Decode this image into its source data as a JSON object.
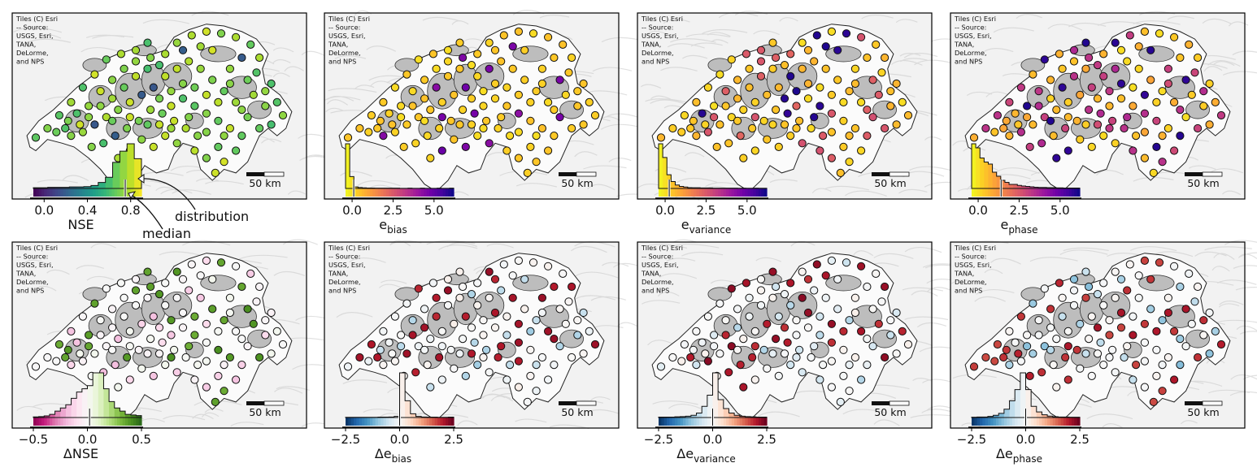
{
  "map_credit": [
    "Tiles (C) Esri",
    "-- Source:",
    "USGS, Esri,",
    "TANA,",
    "DeLorme,",
    "and NPS"
  ],
  "scalebar_label": "50 km",
  "annotations": {
    "distribution": "distribution",
    "median": "median"
  },
  "panels": [
    {
      "id": "nse",
      "colormap": "viridis",
      "label_main": "NSE",
      "label_sub": "",
      "ticks": [
        "0.0",
        "0.4",
        "0.8"
      ],
      "tick_values": [
        0.0,
        0.4,
        0.8
      ],
      "range": [
        -0.1,
        0.9
      ],
      "median": 0.75,
      "hist": [
        0.2,
        0.2,
        0.3,
        0.3,
        0.3,
        0.4,
        0.4,
        0.5,
        0.8,
        1.6,
        3.0,
        7.0,
        10.0,
        12.0,
        8.0
      ]
    },
    {
      "id": "ebias",
      "colormap": "plasma_r",
      "label_main": "e",
      "label_sub": "bias",
      "ticks": [
        "0.0",
        "2.5",
        "5.0"
      ],
      "tick_values": [
        0.0,
        2.5,
        5.0
      ],
      "range": [
        -0.4,
        6.2
      ],
      "median": 0.1,
      "hist": [
        30,
        8,
        1,
        0.6,
        0.4,
        0.3,
        0.3,
        0.2,
        0.2,
        0.2,
        0.2,
        0.2,
        0.2,
        0.1,
        0.1,
        0.2,
        0.1,
        0.1,
        0.2,
        0.1,
        0.1,
        0.1,
        0.2,
        0.1,
        0.1,
        0.2
      ]
    },
    {
      "id": "evariance",
      "colormap": "plasma_r",
      "label_main": "e",
      "label_sub": "variance",
      "ticks": [
        "0.0",
        "2.5",
        "5.0"
      ],
      "tick_values": [
        0.0,
        2.5,
        5.0
      ],
      "range": [
        -0.4,
        6.2
      ],
      "median": 0.25,
      "hist": [
        26,
        18,
        8,
        4,
        2,
        1.2,
        0.8,
        0.5,
        0.4,
        0.4,
        0.3,
        0.3,
        0.3,
        0.2,
        0.2,
        0.2,
        0.2,
        0.2,
        0.2,
        0.1,
        0.2,
        0.1,
        0.1,
        0.2,
        0.1,
        0.1
      ]
    },
    {
      "id": "ephase",
      "colormap": "plasma_r",
      "label_main": "e",
      "label_sub": "phase",
      "ticks": [
        "0.0",
        "2.5",
        "5.0"
      ],
      "tick_values": [
        0.0,
        2.5,
        5.0
      ],
      "range": [
        -0.4,
        6.2
      ],
      "median": 1.4,
      "hist": [
        22,
        20,
        15,
        13,
        12,
        8,
        6,
        4,
        3,
        2,
        2,
        1.5,
        1.2,
        1,
        0.8,
        0.6,
        0.5,
        0.5,
        0.4,
        0.4,
        0.3,
        0.3,
        0.2,
        0.2,
        0.2,
        0.2
      ]
    },
    {
      "id": "dnse",
      "colormap": "PiYG",
      "label_main": "ΔNSE",
      "label_sub": "",
      "ticks": [
        "−0.5",
        "0.0",
        "0.5"
      ],
      "tick_values": [
        -0.5,
        0.0,
        0.5
      ],
      "range": [
        -0.5,
        0.5
      ],
      "median": 0.02,
      "hist": [
        0.2,
        0.3,
        0.5,
        1,
        2,
        3,
        4,
        6,
        8,
        9,
        10,
        14,
        14,
        9,
        5,
        3,
        2,
        1,
        0.8,
        0.6
      ]
    },
    {
      "id": "debias",
      "colormap": "RdBu_r",
      "label_main": "Δe",
      "label_sub": "bias",
      "ticks": [
        "−2.5",
        "0.0",
        "2.5"
      ],
      "tick_values": [
        -2.5,
        0.0,
        2.5
      ],
      "range": [
        -2.5,
        2.5
      ],
      "median": 0.0,
      "hist": [
        0.1,
        0.1,
        0.1,
        0.1,
        0.1,
        0.1,
        0.2,
        0.2,
        0.3,
        0.6,
        24,
        9,
        2,
        0.6,
        0.3,
        0.2,
        0.2,
        0.1,
        0.1,
        0.2
      ]
    },
    {
      "id": "devariance",
      "colormap": "RdBu_r",
      "label_main": "Δe",
      "label_sub": "variance",
      "ticks": [
        "−2.5",
        "0.0",
        "2.5"
      ],
      "tick_values": [
        -2.5,
        0.0,
        2.5
      ],
      "range": [
        -2.5,
        2.5
      ],
      "median": 0.0,
      "hist": [
        0.2,
        0.2,
        0.2,
        0.3,
        0.4,
        0.6,
        1,
        2,
        5,
        10,
        20,
        8,
        4,
        2,
        1,
        0.6,
        0.4,
        0.3,
        0.2,
        0.2
      ]
    },
    {
      "id": "dephase",
      "colormap": "RdBu_r",
      "label_main": "Δe",
      "label_sub": "phase",
      "ticks": [
        "−2.5",
        "0.0",
        "2.5"
      ],
      "tick_values": [
        -2.5,
        0.0,
        2.5
      ],
      "range": [
        -2.5,
        2.5
      ],
      "median": 0.0,
      "hist": [
        0.1,
        0.2,
        0.2,
        0.4,
        0.8,
        1.5,
        3,
        6,
        10,
        16,
        10,
        4,
        2,
        1,
        0.5,
        0.3,
        0.2,
        0.2,
        0.1,
        0.1
      ]
    }
  ],
  "chart_data": {
    "type": "scatter",
    "title": "",
    "station_count": 112,
    "panels": [
      {
        "metric": "NSE",
        "colorbar_range": [
          -0.1,
          0.9
        ],
        "median": 0.75
      },
      {
        "metric": "e_bias",
        "colorbar_range": [
          -0.4,
          6.2
        ],
        "median": 0.1
      },
      {
        "metric": "e_variance",
        "colorbar_range": [
          -0.4,
          6.2
        ],
        "median": 0.25
      },
      {
        "metric": "e_phase",
        "colorbar_range": [
          -0.4,
          6.2
        ],
        "median": 1.4
      },
      {
        "metric": "ΔNSE",
        "colorbar_range": [
          -0.5,
          0.5
        ],
        "median": 0.02
      },
      {
        "metric": "Δe_bias",
        "colorbar_range": [
          -2.5,
          2.5
        ],
        "median": 0.0
      },
      {
        "metric": "Δe_variance",
        "colorbar_range": [
          -2.5,
          2.5
        ],
        "median": 0.0
      },
      {
        "metric": "Δe_phase",
        "colorbar_range": [
          -2.5,
          2.5
        ],
        "median": 0.0
      }
    ]
  }
}
